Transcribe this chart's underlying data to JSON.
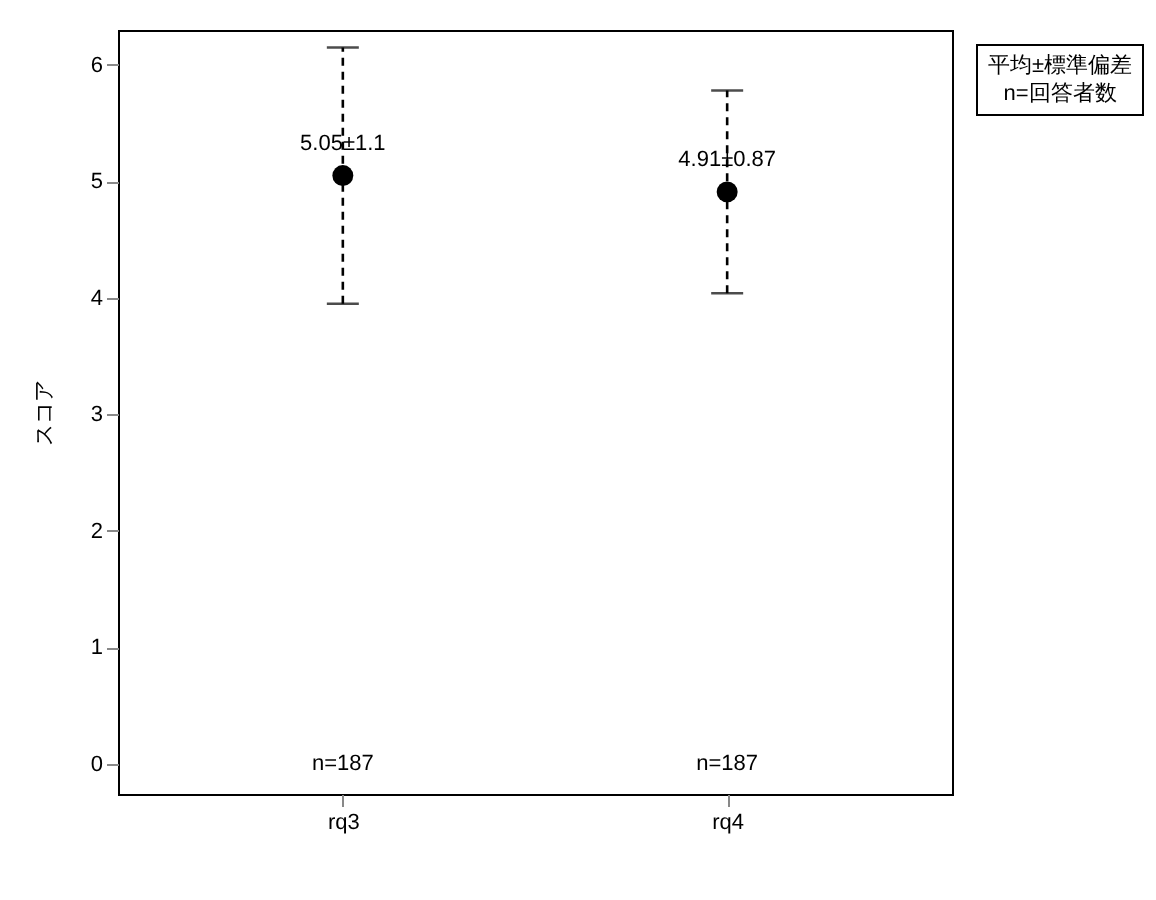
{
  "chart_data": {
    "type": "scatter",
    "ylabel": "スコア",
    "categories": [
      "rq3",
      "rq4"
    ],
    "series": [
      {
        "color": "#000000",
        "values": [
          5.05,
          4.91
        ],
        "errors": [
          1.1,
          0.87
        ],
        "value_labels": [
          "5.05±1.1",
          "4.91±0.87"
        ]
      }
    ],
    "ylim": [
      -0.26,
      6.3
    ],
    "yticks": [
      0,
      1,
      2,
      3,
      4,
      5,
      6
    ],
    "grid": false,
    "marker": "circle",
    "annotations": [
      "n=187",
      "n=187",
      "平均±標準偏差",
      "n=回答者数"
    ]
  }
}
